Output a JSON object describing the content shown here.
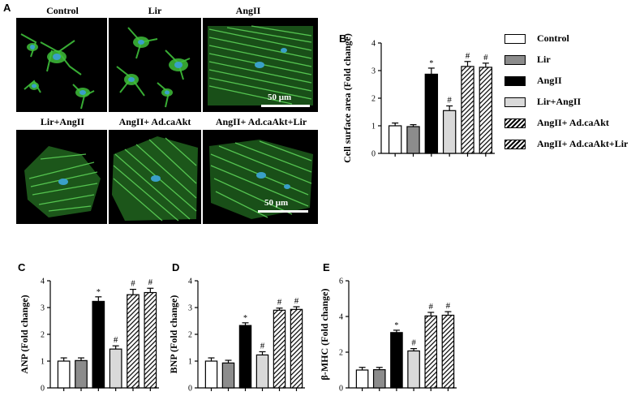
{
  "panels": {
    "A": "A",
    "B": "B",
    "C": "C",
    "D": "D",
    "E": "E"
  },
  "microscopy": {
    "images": [
      {
        "label": "Control"
      },
      {
        "label": "Lir"
      },
      {
        "label": "AngII"
      },
      {
        "label": "Lir+AngII"
      },
      {
        "label": "AngII+ Ad.caAkt"
      },
      {
        "label": "AngII+ Ad.caAkt+Lir"
      }
    ],
    "scale_bar_label": "50 μm",
    "colors": {
      "actin": "#3fbf3a",
      "nucleus": "#3aa0c8",
      "background": "#000000"
    }
  },
  "legend": {
    "items": [
      {
        "label": "Control",
        "pattern": "white"
      },
      {
        "label": "Lir",
        "pattern": "gray"
      },
      {
        "label": "AngII",
        "pattern": "black"
      },
      {
        "label": "Lir+AngII",
        "pattern": "lightgray"
      },
      {
        "label": "AngII+ Ad.caAkt",
        "pattern": "hatch"
      },
      {
        "label": "AngII+ Ad.caAkt+Lir",
        "pattern": "hatch"
      }
    ]
  },
  "chart_data": [
    {
      "id": "B",
      "type": "bar",
      "ylabel": "Cell  surface area (Fold change)",
      "ylim": [
        0,
        4
      ],
      "yticks": [
        "0",
        "1",
        "2",
        "3",
        "4"
      ],
      "categories": [
        "Control",
        "Lir",
        "AngII",
        "Lir+AngII",
        "AngII+ Ad.caAkt",
        "AngII+ Ad.caAkt+Lir"
      ],
      "values": [
        1.0,
        0.97,
        2.87,
        1.55,
        3.15,
        3.12
      ],
      "errors": [
        0.1,
        0.07,
        0.22,
        0.17,
        0.18,
        0.15
      ],
      "annotations": [
        "",
        "",
        "*",
        "#",
        "#",
        "#"
      ]
    },
    {
      "id": "C",
      "type": "bar",
      "ylabel": "ANP (Fold change)",
      "ylim": [
        0,
        4
      ],
      "yticks": [
        "0",
        "1",
        "2",
        "3",
        "4"
      ],
      "categories": [
        "Control",
        "Lir",
        "AngII",
        "Lir+AngII",
        "AngII+ Ad.caAkt",
        "AngII+ Ad.caAkt+Lir"
      ],
      "values": [
        1.0,
        1.02,
        3.23,
        1.45,
        3.48,
        3.56
      ],
      "errors": [
        0.12,
        0.1,
        0.17,
        0.12,
        0.2,
        0.16
      ],
      "annotations": [
        "",
        "",
        "*",
        "#",
        "#",
        "#"
      ]
    },
    {
      "id": "D",
      "type": "bar",
      "ylabel": "BNP (Fold change)",
      "ylim": [
        0,
        4
      ],
      "yticks": [
        "0",
        "1",
        "2",
        "3",
        "4"
      ],
      "categories": [
        "Control",
        "Lir",
        "AngII",
        "Lir+AngII",
        "AngII+ Ad.caAkt",
        "AngII+ Ad.caAkt+Lir"
      ],
      "values": [
        1.0,
        0.93,
        2.33,
        1.23,
        2.9,
        2.93
      ],
      "errors": [
        0.12,
        0.1,
        0.1,
        0.12,
        0.08,
        0.1
      ],
      "annotations": [
        "",
        "",
        "*",
        "#",
        "#",
        "#"
      ]
    },
    {
      "id": "E",
      "type": "bar",
      "ylabel": "β-MHC (Fold change)",
      "ylim": [
        0,
        6
      ],
      "yticks": [
        "0",
        "2",
        "4",
        "6"
      ],
      "categories": [
        "Control",
        "Lir",
        "AngII",
        "Lir+AngII",
        "AngII+ Ad.caAkt",
        "AngII+ Ad.caAkt+Lir"
      ],
      "values": [
        1.0,
        1.02,
        3.1,
        2.07,
        4.03,
        4.07
      ],
      "errors": [
        0.15,
        0.13,
        0.13,
        0.13,
        0.2,
        0.2
      ],
      "annotations": [
        "",
        "",
        "*",
        "#",
        "#",
        "#"
      ]
    }
  ]
}
